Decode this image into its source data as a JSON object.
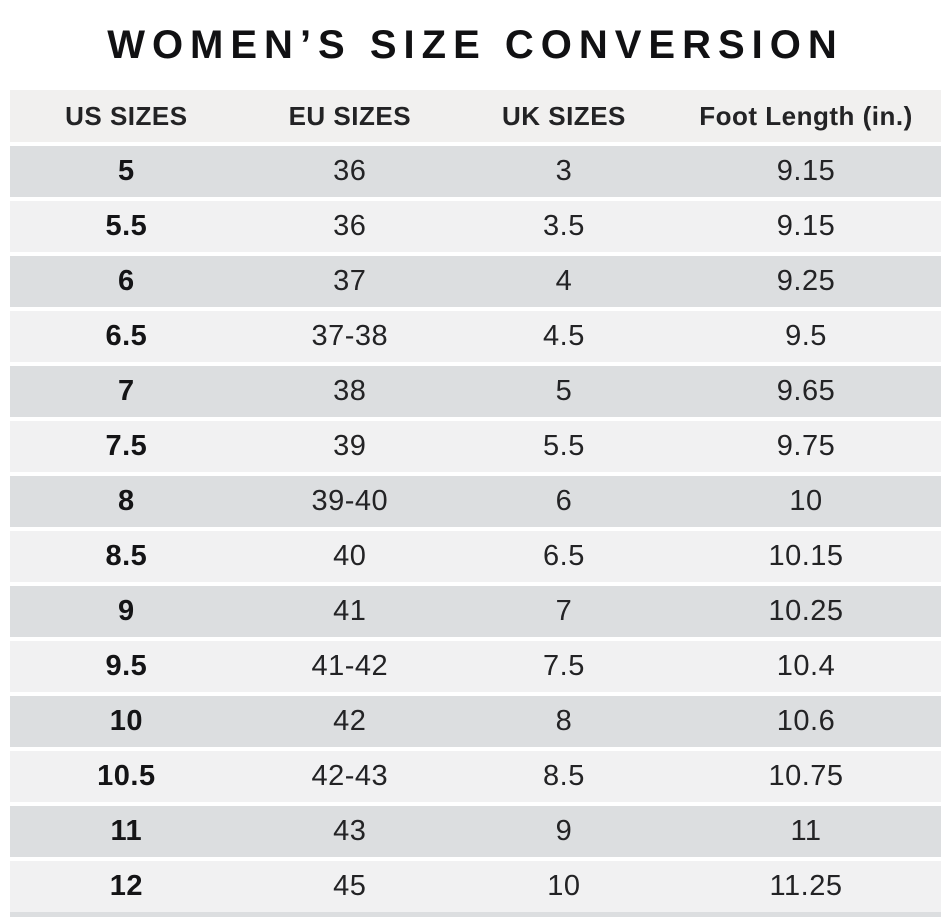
{
  "title": "WOMEN’S SIZE CONVERSION",
  "chart_data": {
    "type": "table",
    "title": "WOMEN’S SIZE CONVERSION",
    "columns": [
      "US SIZES",
      "EU SIZES",
      "UK SIZES",
      "Foot Length (in.)"
    ],
    "rows": [
      [
        "5",
        "36",
        "3",
        "9.15"
      ],
      [
        "5.5",
        "36",
        "3.5",
        "9.15"
      ],
      [
        "6",
        "37",
        "4",
        "9.25"
      ],
      [
        "6.5",
        "37-38",
        "4.5",
        "9.5"
      ],
      [
        "7",
        "38",
        "5",
        "9.65"
      ],
      [
        "7.5",
        "39",
        "5.5",
        "9.75"
      ],
      [
        "8",
        "39-40",
        "6",
        "10"
      ],
      [
        "8.5",
        "40",
        "6.5",
        "10.15"
      ],
      [
        "9",
        "41",
        "7",
        "10.25"
      ],
      [
        "9.5",
        "41-42",
        "7.5",
        "10.4"
      ],
      [
        "10",
        "42",
        "8",
        "10.6"
      ],
      [
        "10.5",
        "42-43",
        "8.5",
        "10.75"
      ],
      [
        "11",
        "43",
        "9",
        "11"
      ],
      [
        "12",
        "45",
        "10",
        "11.25"
      ]
    ],
    "layout": {
      "row_style": "alternating",
      "first_row_shade": "dark",
      "grid": "off",
      "column_alignment": "center"
    }
  },
  "colors": {
    "row_dark": "#dcdee0",
    "row_light": "#f1f1f2",
    "header_bg": "#f1f0ef",
    "background": "#ffffff",
    "text": "#232325"
  }
}
